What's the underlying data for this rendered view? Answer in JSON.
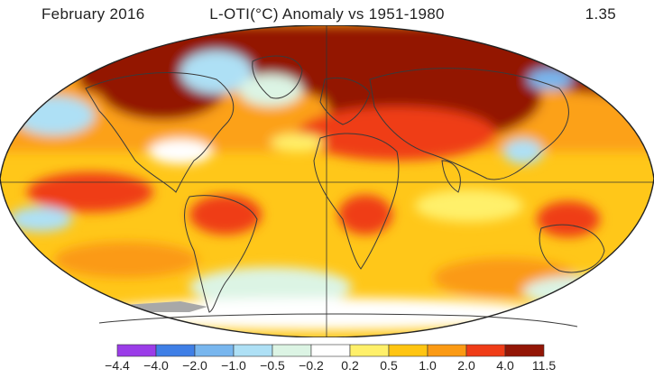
{
  "header": {
    "date": "February 2016",
    "title": "L-OTI(°C) Anomaly vs 1951-1980",
    "global_mean": "1.35"
  },
  "legend": {
    "ticks": [
      "−4.4",
      "−4.0",
      "−2.0",
      "−1.0",
      "−0.5",
      "−0.2",
      "0.2",
      "0.5",
      "1.0",
      "2.0",
      "4.0",
      "11.5"
    ],
    "colors": [
      "#9b3de8",
      "#3f7fe6",
      "#78b6ee",
      "#aee0f5",
      "#dcf4e4",
      "#ffffff",
      "#fff06a",
      "#ffc512",
      "#fb9a14",
      "#ef3c17",
      "#931606"
    ]
  },
  "palette": {
    "ocean_base": "#ffc719",
    "land_outline": "#3a3a3a",
    "no_data": "#a8a8a8"
  }
}
